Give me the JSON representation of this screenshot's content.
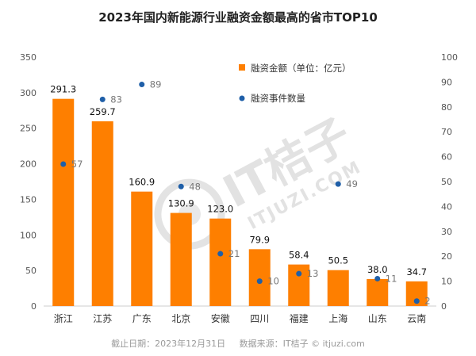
{
  "chart_data": {
    "type": "bar",
    "title": "2023年国内新能源行业融资金额最高的省市TOP10",
    "categories": [
      "浙江",
      "江苏",
      "广东",
      "北京",
      "安徽",
      "四川",
      "福建",
      "上海",
      "山东",
      "云南"
    ],
    "series": [
      {
        "name": "融资金额（单位：亿元）",
        "type": "bar",
        "axis": "left",
        "values": [
          291.3,
          259.7,
          160.9,
          130.9,
          123.0,
          79.9,
          58.4,
          50.5,
          38.0,
          34.7
        ],
        "labels": [
          "291.3",
          "259.7",
          "160.9",
          "130.9",
          "123.0",
          "79.9",
          "58.4",
          "50.5",
          "38.0",
          "34.7"
        ]
      },
      {
        "name": "融资事件数量",
        "type": "scatter",
        "axis": "right",
        "values": [
          57,
          83,
          89,
          48,
          21,
          10,
          13,
          49,
          11,
          2
        ]
      }
    ],
    "y_left": {
      "min": 0,
      "max": 350,
      "ticks": [
        0,
        50,
        100,
        150,
        200,
        250,
        300,
        350
      ]
    },
    "y_right": {
      "min": 0,
      "max": 100,
      "ticks": [
        0,
        10,
        20,
        30,
        40,
        50,
        60,
        70,
        80,
        90,
        100
      ]
    },
    "legend_position": "top-right",
    "grid": false
  },
  "colors": {
    "bar": "#fe7f00",
    "dot": "#1f5fa8"
  },
  "watermark": {
    "brand": "IT桔子",
    "url": "ITJUZI.COM"
  },
  "footer": "截止日期：2023年12月31日     数据来源：IT桔子 © itjuzi.com"
}
